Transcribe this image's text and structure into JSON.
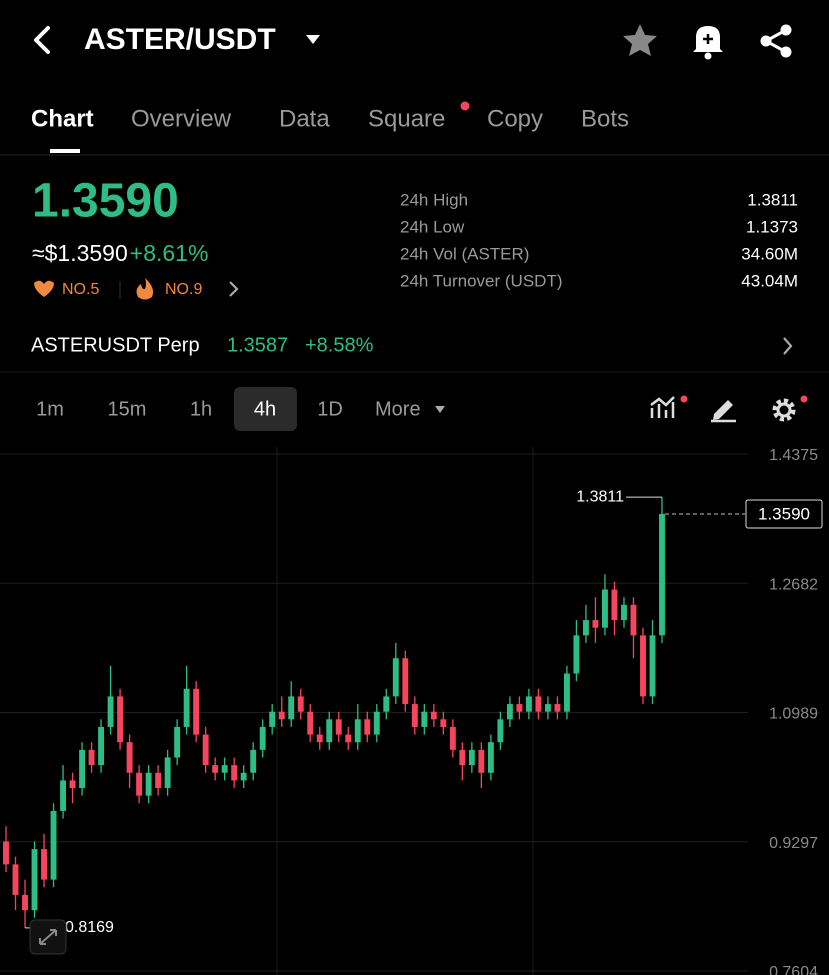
{
  "header": {
    "title": "ASTER/USDT"
  },
  "tabs": [
    "Chart",
    "Overview",
    "Data",
    "Square",
    "Copy",
    "Bots"
  ],
  "price": {
    "last": "1.3590",
    "fiat": "≈$1.3590",
    "change": "+8.61%",
    "ranks": [
      "NO.5",
      "NO.9"
    ]
  },
  "stats": [
    {
      "label": "24h High",
      "value": "1.3811"
    },
    {
      "label": "24h Low",
      "value": "1.1373"
    },
    {
      "label": "24h Vol (ASTER)",
      "value": "34.60M"
    },
    {
      "label": "24h Turnover (USDT)",
      "value": "43.04M"
    }
  ],
  "perp": {
    "name": "ASTERUSDT Perp",
    "price": "1.3587",
    "change": "+8.58%"
  },
  "intervals": [
    "1m",
    "15m",
    "1h",
    "4h",
    "1D",
    "More"
  ],
  "chart_data": {
    "type": "candlestick",
    "up_color": "#2ebd85",
    "down_color": "#f6465d",
    "open": [
      0.93,
      0.9,
      0.86,
      0.84,
      0.92,
      0.88,
      0.97,
      1.01,
      1.0,
      1.05,
      1.03,
      1.08,
      1.12,
      1.06,
      1.02,
      0.99,
      1.02,
      1.0,
      1.04,
      1.08,
      1.13,
      1.07,
      1.03,
      1.02,
      1.03,
      1.01,
      1.02,
      1.05,
      1.08,
      1.1,
      1.09,
      1.12,
      1.1,
      1.07,
      1.06,
      1.09,
      1.07,
      1.06,
      1.09,
      1.07,
      1.1,
      1.12,
      1.17,
      1.11,
      1.08,
      1.1,
      1.09,
      1.08,
      1.05,
      1.03,
      1.05,
      1.02,
      1.06,
      1.09,
      1.11,
      1.1,
      1.12,
      1.1,
      1.11,
      1.1,
      1.15,
      1.2,
      1.22,
      1.21,
      1.26,
      1.22,
      1.24,
      1.2,
      1.12,
      1.2
    ],
    "high": [
      0.95,
      0.91,
      0.88,
      0.93,
      0.94,
      0.98,
      1.03,
      1.02,
      1.06,
      1.06,
      1.09,
      1.16,
      1.13,
      1.07,
      1.03,
      1.03,
      1.03,
      1.05,
      1.09,
      1.16,
      1.14,
      1.08,
      1.04,
      1.04,
      1.04,
      1.03,
      1.06,
      1.09,
      1.11,
      1.12,
      1.14,
      1.13,
      1.11,
      1.08,
      1.1,
      1.1,
      1.08,
      1.11,
      1.1,
      1.11,
      1.13,
      1.19,
      1.18,
      1.12,
      1.11,
      1.11,
      1.1,
      1.09,
      1.06,
      1.06,
      1.06,
      1.07,
      1.1,
      1.12,
      1.12,
      1.13,
      1.13,
      1.12,
      1.12,
      1.16,
      1.22,
      1.24,
      1.25,
      1.28,
      1.27,
      1.25,
      1.25,
      1.21,
      1.22,
      1.3811
    ],
    "low": [
      0.89,
      0.84,
      0.8169,
      0.83,
      0.87,
      0.87,
      0.96,
      0.98,
      0.99,
      1.02,
      1.02,
      1.07,
      1.05,
      1.0,
      0.98,
      0.98,
      0.99,
      0.99,
      1.03,
      1.07,
      1.06,
      1.02,
      1.01,
      1.01,
      1.0,
      1.0,
      1.01,
      1.04,
      1.07,
      1.08,
      1.08,
      1.09,
      1.06,
      1.05,
      1.05,
      1.06,
      1.05,
      1.05,
      1.06,
      1.06,
      1.09,
      1.11,
      1.1,
      1.07,
      1.07,
      1.08,
      1.07,
      1.04,
      1.01,
      1.02,
      1.0,
      1.01,
      1.05,
      1.08,
      1.09,
      1.09,
      1.09,
      1.09,
      1.09,
      1.09,
      1.14,
      1.19,
      1.19,
      1.2,
      1.2,
      1.21,
      1.17,
      1.11,
      1.11,
      1.19
    ],
    "close": [
      0.9,
      0.86,
      0.84,
      0.92,
      0.88,
      0.97,
      1.01,
      1.0,
      1.05,
      1.03,
      1.08,
      1.12,
      1.06,
      1.02,
      0.99,
      1.02,
      1.0,
      1.04,
      1.08,
      1.13,
      1.07,
      1.03,
      1.02,
      1.03,
      1.01,
      1.02,
      1.05,
      1.08,
      1.1,
      1.09,
      1.12,
      1.1,
      1.07,
      1.06,
      1.09,
      1.07,
      1.06,
      1.09,
      1.07,
      1.1,
      1.12,
      1.17,
      1.11,
      1.08,
      1.1,
      1.09,
      1.08,
      1.05,
      1.03,
      1.05,
      1.02,
      1.06,
      1.09,
      1.11,
      1.1,
      1.12,
      1.1,
      1.11,
      1.1,
      1.15,
      1.2,
      1.22,
      1.21,
      1.26,
      1.22,
      1.24,
      1.2,
      1.12,
      1.2,
      1.359
    ],
    "ylim": [
      0.7551,
      1.4467
    ],
    "yticks": [
      1.4375,
      1.2682,
      1.0989,
      0.9297,
      0.7604
    ],
    "grid": true
  }
}
